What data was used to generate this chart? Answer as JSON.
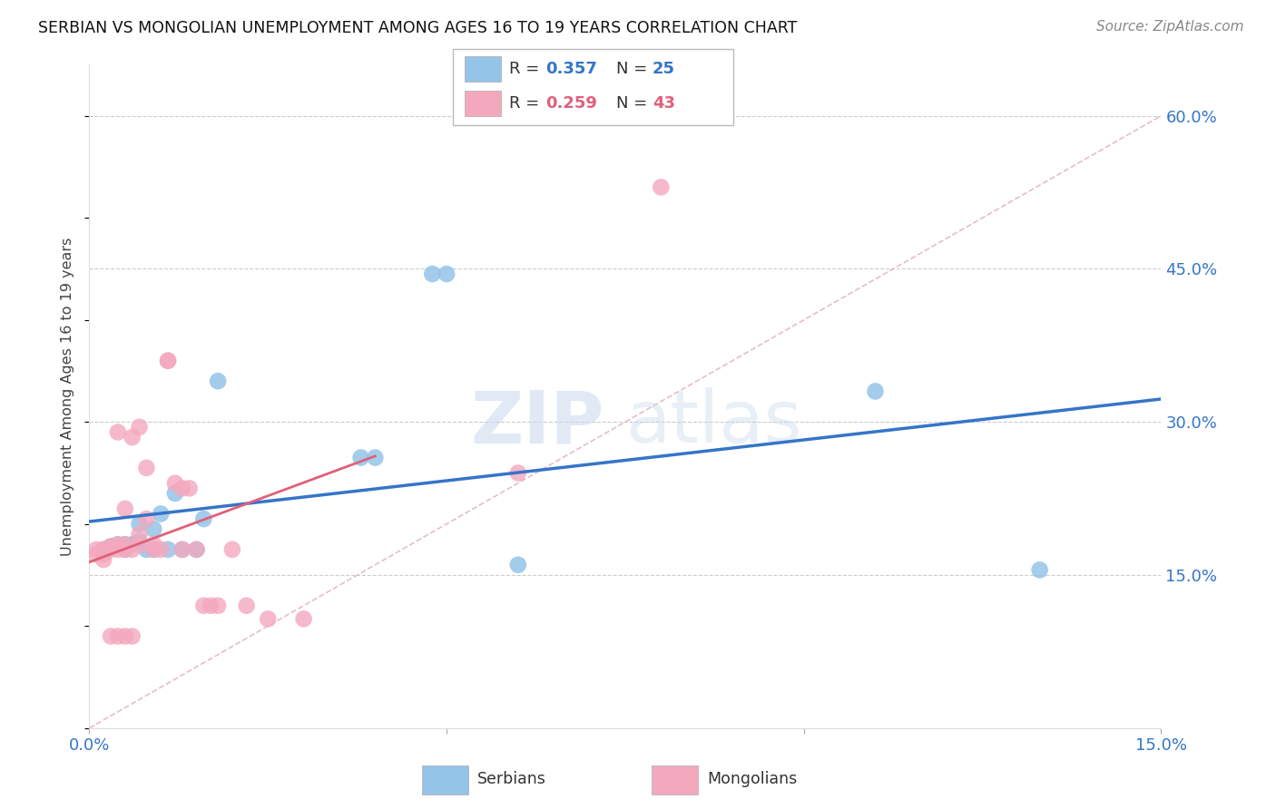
{
  "title": "SERBIAN VS MONGOLIAN UNEMPLOYMENT AMONG AGES 16 TO 19 YEARS CORRELATION CHART",
  "source": "Source: ZipAtlas.com",
  "ylabel": "Unemployment Among Ages 16 to 19 years",
  "xlim": [
    0.0,
    0.15
  ],
  "ylim": [
    0.0,
    0.65
  ],
  "serbian_color": "#94C4E8",
  "mongolian_color": "#F4A8BE",
  "serbian_line_color": "#3575C8",
  "mongolian_line_color": "#E0607A",
  "diagonal_color": "#E0B8C0",
  "background_color": "#FFFFFF",
  "watermark_zip": "ZIP",
  "watermark_atlas": "atlas",
  "legend_R1": "R = 0.357",
  "legend_N1": "N = 25",
  "legend_R2": "R = 0.259",
  "legend_N2": "N = 43",
  "legend_color1": "#3575C8",
  "legend_color2": "#E0607A",
  "serbian_x": [
    0.002,
    0.003,
    0.004,
    0.005,
    0.005,
    0.006,
    0.007,
    0.007,
    0.008,
    0.009,
    0.009,
    0.01,
    0.011,
    0.012,
    0.013,
    0.015,
    0.016,
    0.018,
    0.038,
    0.04,
    0.048,
    0.05,
    0.06,
    0.11,
    0.133
  ],
  "serbian_y": [
    0.175,
    0.178,
    0.18,
    0.18,
    0.175,
    0.18,
    0.2,
    0.183,
    0.175,
    0.195,
    0.175,
    0.21,
    0.175,
    0.23,
    0.175,
    0.175,
    0.205,
    0.34,
    0.265,
    0.265,
    0.445,
    0.445,
    0.16,
    0.33,
    0.155
  ],
  "mongolian_x": [
    0.001,
    0.001,
    0.002,
    0.002,
    0.002,
    0.003,
    0.003,
    0.003,
    0.004,
    0.004,
    0.004,
    0.004,
    0.005,
    0.005,
    0.005,
    0.005,
    0.006,
    0.006,
    0.006,
    0.007,
    0.007,
    0.007,
    0.008,
    0.008,
    0.009,
    0.009,
    0.01,
    0.011,
    0.011,
    0.012,
    0.013,
    0.013,
    0.014,
    0.015,
    0.016,
    0.017,
    0.018,
    0.02,
    0.022,
    0.025,
    0.03,
    0.06,
    0.08
  ],
  "mongolian_y": [
    0.175,
    0.17,
    0.165,
    0.175,
    0.17,
    0.175,
    0.178,
    0.09,
    0.18,
    0.175,
    0.09,
    0.29,
    0.18,
    0.175,
    0.215,
    0.09,
    0.285,
    0.175,
    0.09,
    0.18,
    0.19,
    0.295,
    0.255,
    0.205,
    0.18,
    0.175,
    0.175,
    0.36,
    0.36,
    0.24,
    0.235,
    0.175,
    0.235,
    0.175,
    0.12,
    0.12,
    0.12,
    0.175,
    0.12,
    0.107,
    0.107,
    0.25,
    0.53
  ]
}
